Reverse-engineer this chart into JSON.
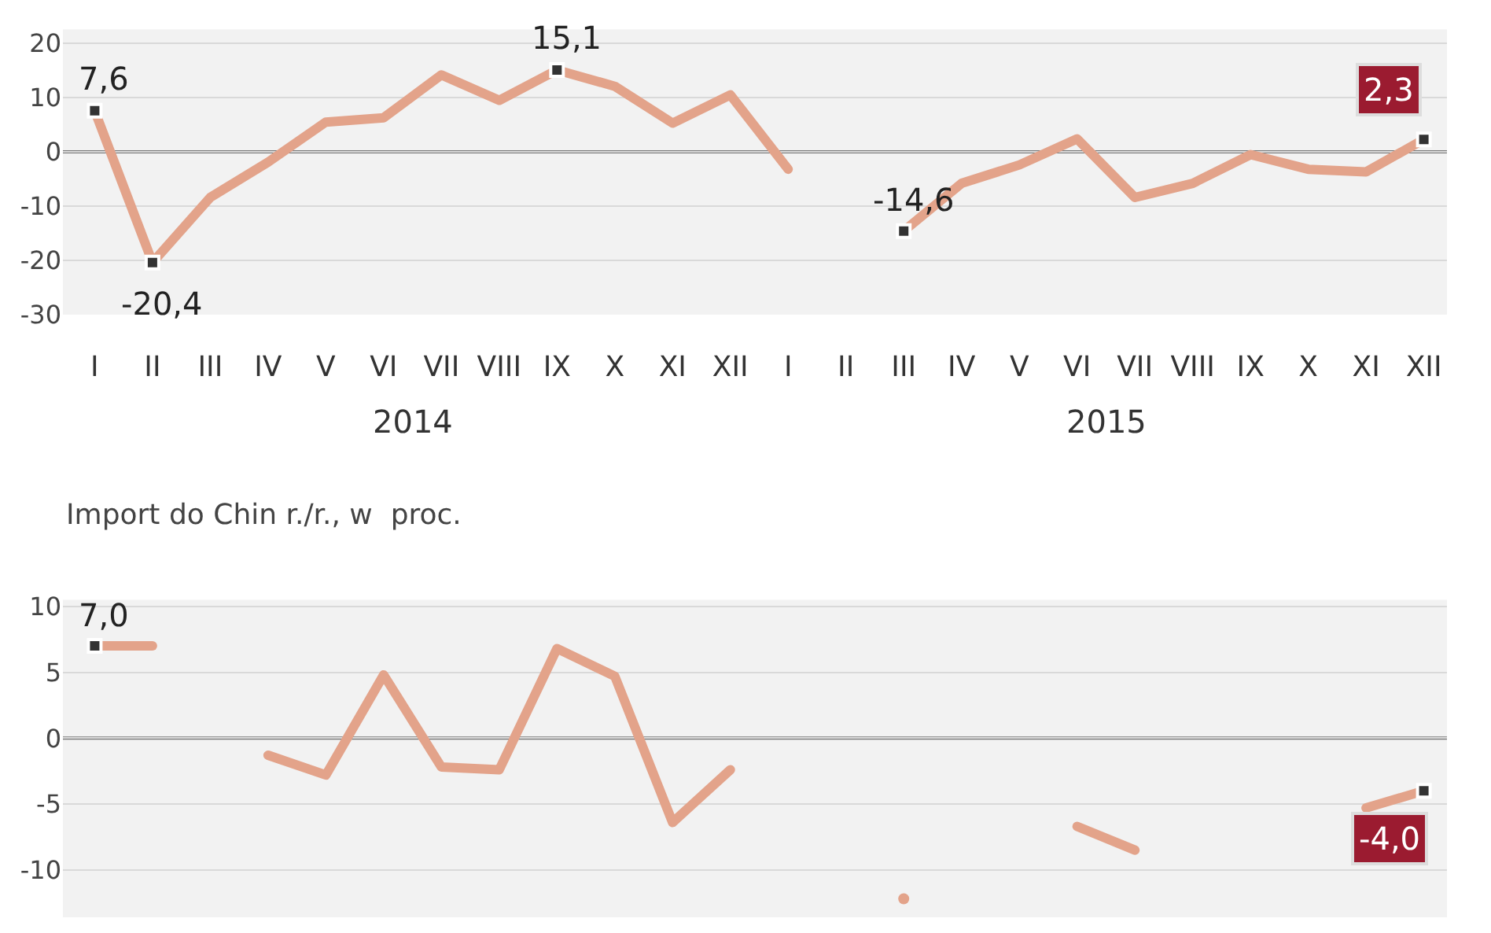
{
  "chart_data": [
    {
      "type": "line",
      "categories": [
        "I",
        "II",
        "III",
        "IV",
        "V",
        "VI",
        "VII",
        "VIII",
        "IX",
        "X",
        "XI",
        "XII",
        "I",
        "II",
        "III",
        "IV",
        "V",
        "VI",
        "VII",
        "VIII",
        "IX",
        "X",
        "XI",
        "XII"
      ],
      "series": [
        {
          "color": "#e3a38a",
          "values": [
            7.6,
            -20.4,
            -8.4,
            -1.9,
            5.5,
            6.3,
            14.2,
            9.5,
            15.1,
            12.1,
            5.3,
            10.5,
            -3.2,
            null,
            -14.6,
            -5.8,
            -2.4,
            2.4,
            -8.4,
            -5.8,
            -0.5,
            -3.2,
            -3.7,
            2.3
          ],
          "value_labels": [
            "7,6",
            "-20,4",
            null,
            null,
            null,
            null,
            null,
            null,
            "15,1",
            null,
            null,
            null,
            null,
            null,
            "-14,6",
            null,
            null,
            null,
            null,
            null,
            null,
            null,
            null,
            "2,3"
          ]
        }
      ],
      "line_style": "solid",
      "grid": "y",
      "ylim": [
        -30,
        22.6
      ],
      "yticks": [
        -30,
        -20,
        -10,
        0,
        10,
        20
      ],
      "ref_lines": [
        {
          "axis": "y",
          "value": 0,
          "color": "#777777",
          "line_style": "solid"
        }
      ],
      "annotations": [
        "2014",
        "2015"
      ]
    },
    {
      "type": "line",
      "title": "Import do Chin r./r., w  proc.",
      "categories": [
        null,
        null,
        null,
        null,
        null,
        null,
        null,
        null,
        null,
        null,
        null,
        null,
        null,
        null,
        null,
        null,
        null,
        null,
        null,
        null,
        null,
        null,
        null,
        null
      ],
      "series": [
        {
          "color": "#e3a38a",
          "values": [
            7.0,
            7.0,
            null,
            -1.3,
            -2.8,
            4.8,
            -2.2,
            -2.4,
            6.8,
            4.7,
            -6.4,
            -2.4,
            null,
            null,
            -12.2,
            null,
            null,
            -6.7,
            -8.5,
            null,
            null,
            null,
            -5.3,
            -4.0
          ],
          "value_labels": [
            "7,0",
            null,
            null,
            null,
            null,
            null,
            null,
            null,
            null,
            null,
            null,
            null,
            null,
            null,
            null,
            null,
            null,
            null,
            null,
            null,
            null,
            null,
            null,
            "-4,0"
          ]
        }
      ],
      "line_style": "solid",
      "grid": "y",
      "tick_labels": "y",
      "ylim": [
        -13.6,
        10.5
      ],
      "yticks": [
        -10,
        -5,
        0,
        5,
        10
      ],
      "ref_lines": [
        {
          "axis": "y",
          "value": 0,
          "color": "#777777",
          "line_style": "solid"
        }
      ]
    }
  ]
}
